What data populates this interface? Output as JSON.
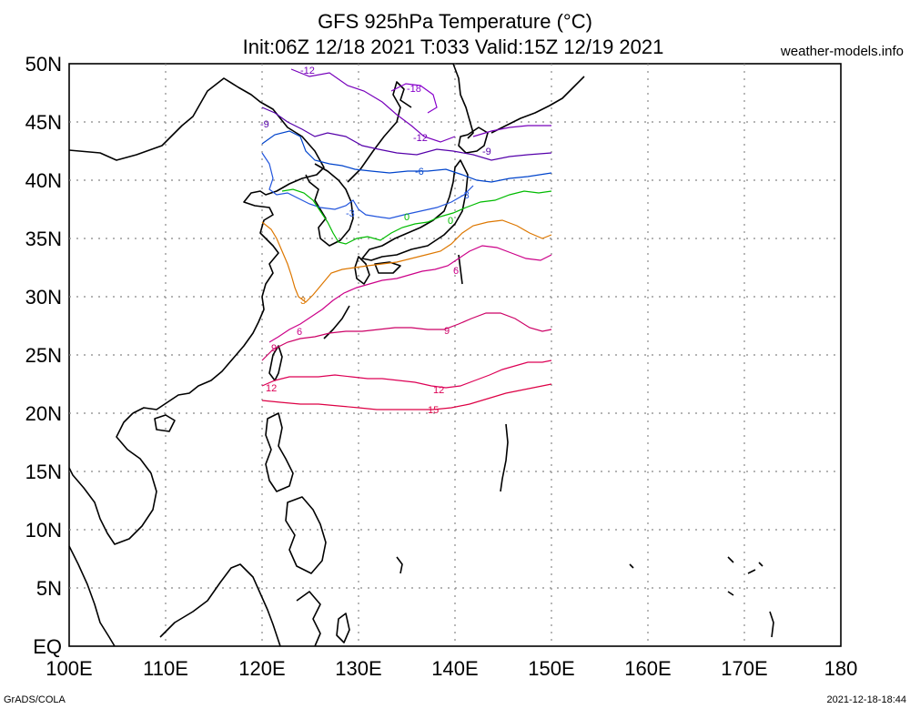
{
  "header": {
    "title_line1": "GFS 925hPa Temperature (°C)",
    "title_line2": "Init:06Z 12/18 2021 T:033 Valid:15Z 12/19 2021",
    "site": "weather-models.info"
  },
  "axes": {
    "lat_labels": [
      "50N",
      "45N",
      "40N",
      "35N",
      "30N",
      "25N",
      "20N",
      "15N",
      "10N",
      "5N",
      "EQ"
    ],
    "lon_labels": [
      "100E",
      "110E",
      "120E",
      "130E",
      "140E",
      "150E",
      "160E",
      "170E",
      "180"
    ]
  },
  "footer": {
    "left": "GrADS/COLA",
    "right": "2021-12-18-18:44"
  },
  "colors": {
    "c_neg18": "#8800cc",
    "c_neg12": "#7700bb",
    "c_neg9": "#5500aa",
    "c_neg6": "#0044cc",
    "c_neg3": "#2255dd",
    "c_0": "#00bb00",
    "c_3": "#dd7700",
    "c_6": "#cc0088",
    "c_9": "#cc0066",
    "c_12": "#dd0055",
    "c_15": "#dd0044"
  },
  "contour_labels": {
    "neg18": "-18",
    "neg12": "-12",
    "neg9": "-9",
    "neg6": "-6",
    "neg3": "-3",
    "zero": "0",
    "pos3": "3",
    "pos6": "6",
    "pos9": "9",
    "pos12": "12",
    "pos15": "15"
  },
  "map_data": {
    "lon_range": [
      100,
      180
    ],
    "lat_range": [
      0,
      50
    ],
    "data_domain": {
      "lon": [
        120,
        150
      ],
      "lat": [
        20,
        48
      ]
    },
    "contour_levels": [
      -18,
      -12,
      -9,
      -6,
      -3,
      0,
      3,
      6,
      9,
      12,
      15
    ]
  }
}
